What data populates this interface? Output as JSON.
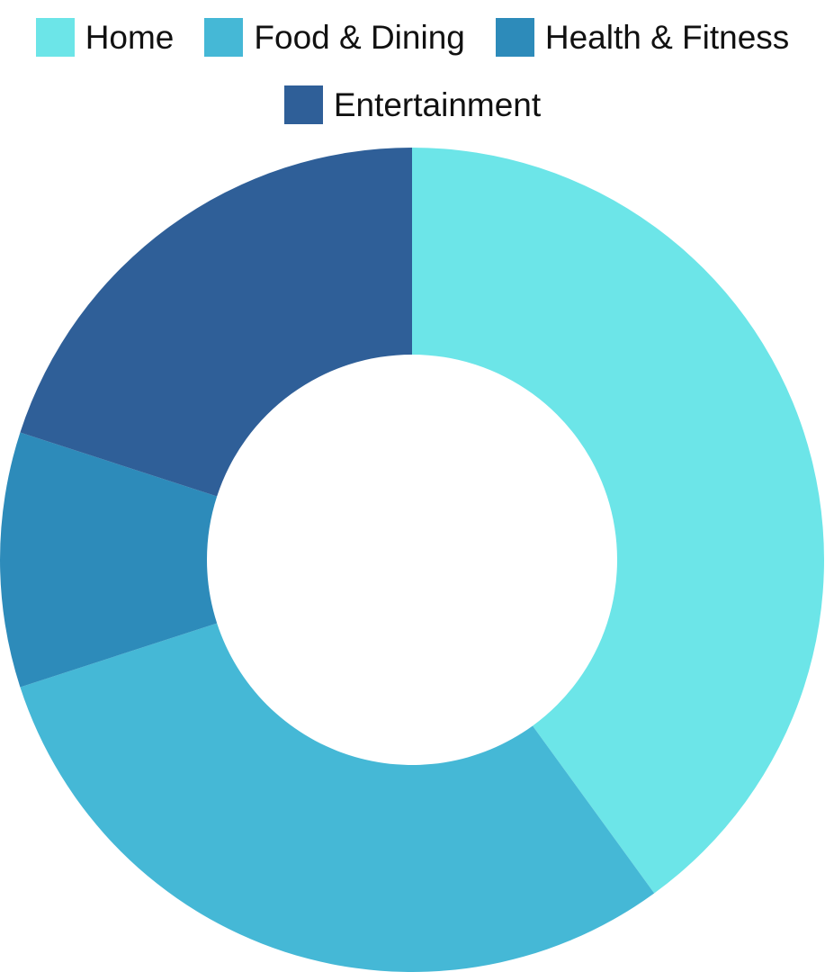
{
  "chart_data": {
    "type": "pie",
    "donut": true,
    "categories": [
      "Home",
      "Food & Dining",
      "Health & Fitness",
      "Entertainment"
    ],
    "values": [
      40,
      30,
      10,
      20
    ],
    "colors": [
      "#6ce5e8",
      "#45b8d6",
      "#2d8bba",
      "#2f5f98"
    ],
    "legend_position": "top",
    "title": "",
    "data_labels": false
  }
}
